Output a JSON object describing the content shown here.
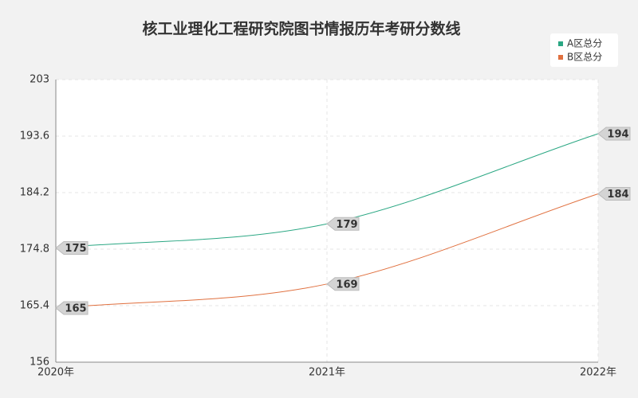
{
  "chart_data": {
    "type": "line",
    "title": "核工业理化工程研究院图书情报历年考研分数线",
    "categories": [
      "2020年",
      "2021年",
      "2022年"
    ],
    "series": [
      {
        "name": "A区总分",
        "color": "#2aa783",
        "values": [
          175,
          179,
          194
        ]
      },
      {
        "name": "B区总分",
        "color": "#e0703f",
        "values": [
          165,
          169,
          184
        ]
      }
    ],
    "ylim": [
      156,
      203
    ],
    "yticks": [
      156,
      165.4,
      174.8,
      184.2,
      193.6,
      203
    ],
    "grid": true,
    "legend": "top-right"
  }
}
